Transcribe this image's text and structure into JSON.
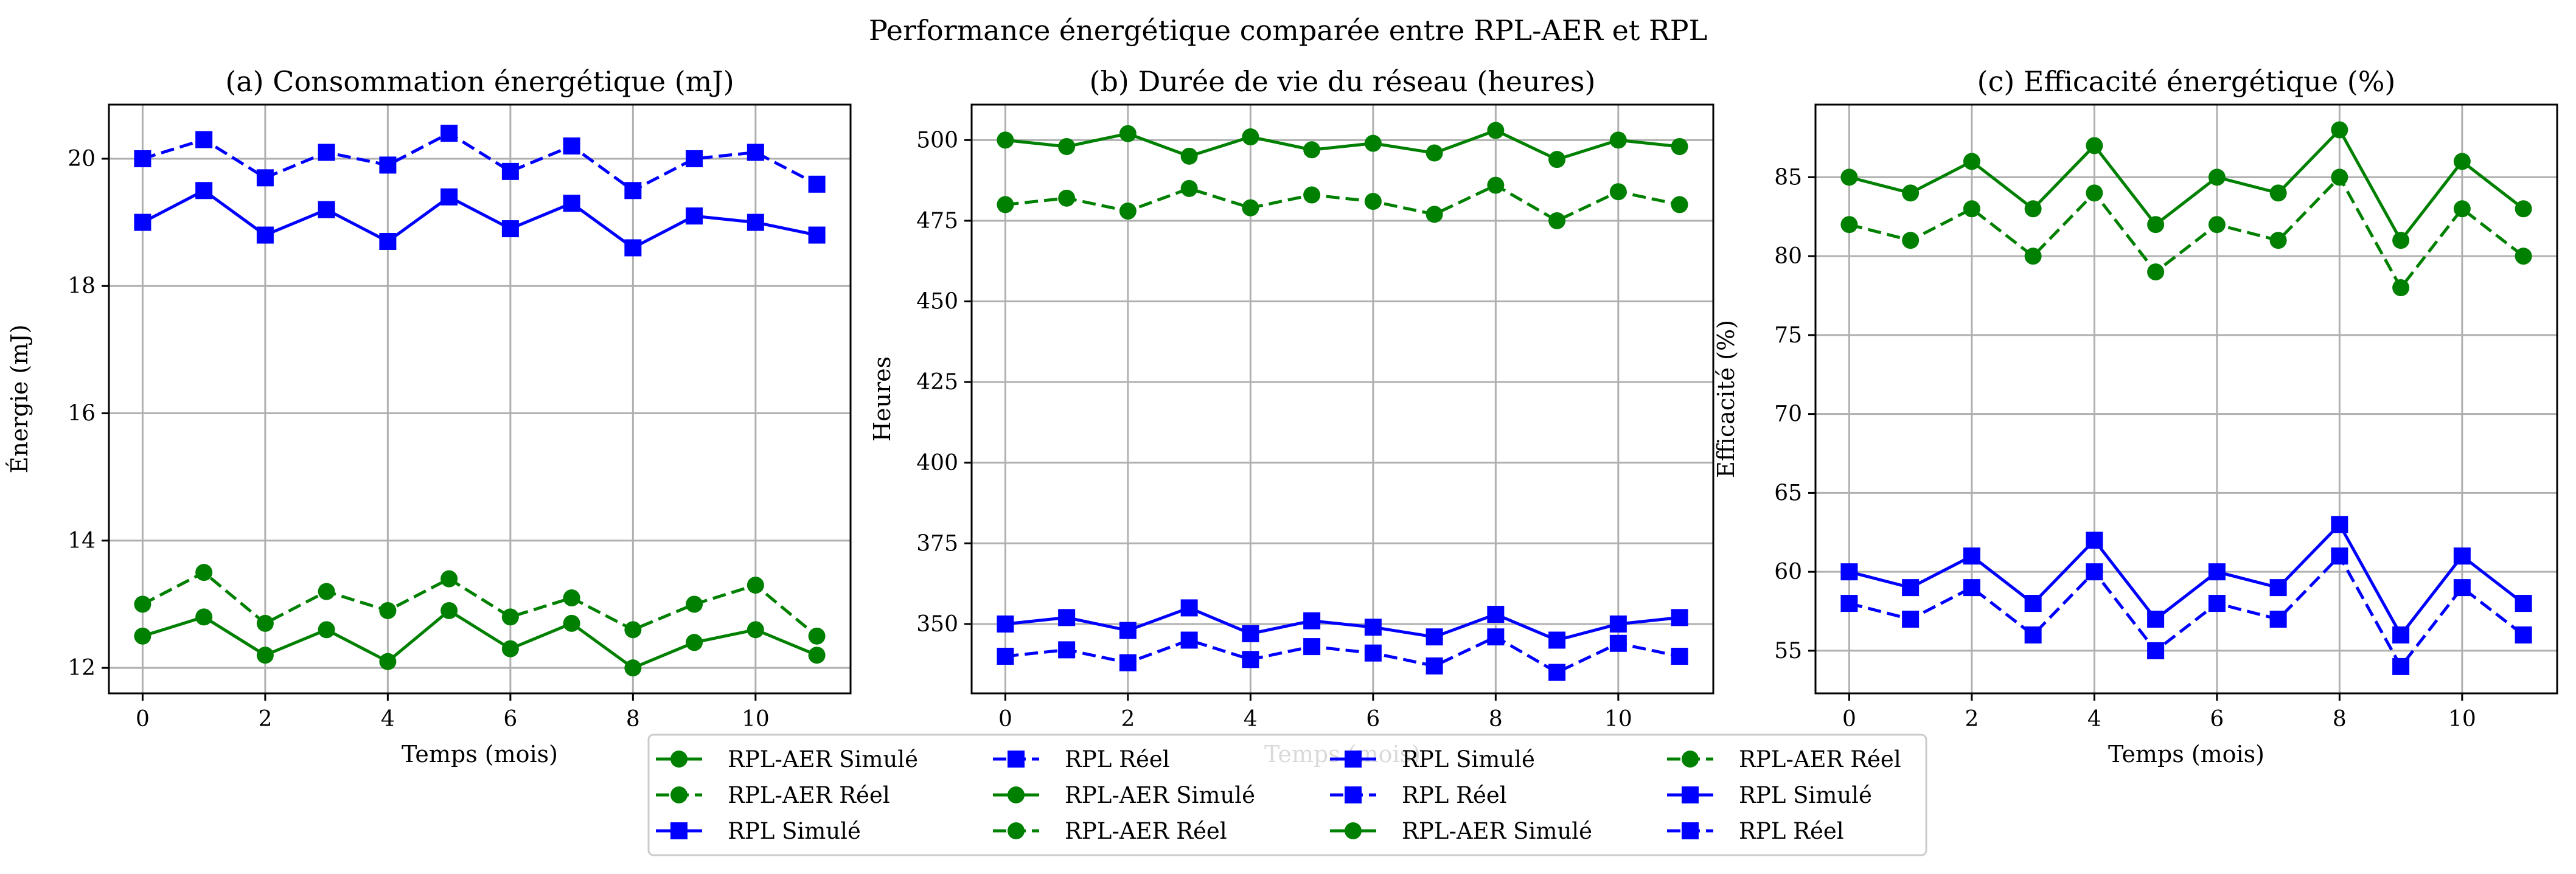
{
  "figure": {
    "title": "Performance énergétique comparée entre RPL-AER et RPL"
  },
  "colors": {
    "green": "#008000",
    "blue": "#0000ff",
    "grid": "#b0b0b0"
  },
  "chart_data": [
    {
      "type": "line",
      "title": "(a) Consommation énergétique (mJ)",
      "xlabel": "Temps (mois)",
      "ylabel": "Énergie (mJ)",
      "grid": true,
      "xlim": [
        -0.55,
        11.55
      ],
      "ylim": [
        11.6,
        20.85
      ],
      "xticks": [
        0,
        2,
        4,
        6,
        8,
        10
      ],
      "yticks": [
        12,
        14,
        16,
        18,
        20
      ],
      "x": [
        0,
        1,
        2,
        3,
        4,
        5,
        6,
        7,
        8,
        9,
        10,
        11
      ],
      "series": [
        {
          "name": "RPL-AER Simulé",
          "color": "#008000",
          "marker": "circle",
          "linestyle": "solid",
          "values": [
            12.5,
            12.8,
            12.2,
            12.6,
            12.1,
            12.9,
            12.3,
            12.7,
            12.0,
            12.4,
            12.6,
            12.2
          ]
        },
        {
          "name": "RPL-AER Réel",
          "color": "#008000",
          "marker": "circle",
          "linestyle": "dashed",
          "values": [
            13.0,
            13.5,
            12.7,
            13.2,
            12.9,
            13.4,
            12.8,
            13.1,
            12.6,
            13.0,
            13.3,
            12.5
          ]
        },
        {
          "name": "RPL Simulé",
          "color": "#0000ff",
          "marker": "square",
          "linestyle": "solid",
          "values": [
            19.0,
            19.5,
            18.8,
            19.2,
            18.7,
            19.4,
            18.9,
            19.3,
            18.6,
            19.1,
            19.0,
            18.8
          ]
        },
        {
          "name": "RPL Réel",
          "color": "#0000ff",
          "marker": "square",
          "linestyle": "dashed",
          "values": [
            20.0,
            20.3,
            19.7,
            20.1,
            19.9,
            20.4,
            19.8,
            20.2,
            19.5,
            20.0,
            20.1,
            19.6
          ]
        }
      ]
    },
    {
      "type": "line",
      "title": "(b) Durée de vie du réseau (heures)",
      "xlabel": "Temps (mois)",
      "ylabel": "Heures",
      "grid": true,
      "xlim": [
        -0.55,
        11.55
      ],
      "ylim": [
        328.5,
        511.0
      ],
      "xticks": [
        0,
        2,
        4,
        6,
        8,
        10
      ],
      "yticks": [
        350,
        375,
        400,
        425,
        450,
        475,
        500
      ],
      "x": [
        0,
        1,
        2,
        3,
        4,
        5,
        6,
        7,
        8,
        9,
        10,
        11
      ],
      "series": [
        {
          "name": "RPL-AER Simulé",
          "color": "#008000",
          "marker": "circle",
          "linestyle": "solid",
          "values": [
            500,
            498,
            502,
            495,
            501,
            497,
            499,
            496,
            503,
            494,
            500,
            498
          ]
        },
        {
          "name": "RPL-AER Réel",
          "color": "#008000",
          "marker": "circle",
          "linestyle": "dashed",
          "values": [
            480,
            482,
            478,
            485,
            479,
            483,
            481,
            477,
            486,
            475,
            484,
            480
          ]
        },
        {
          "name": "RPL Simulé",
          "color": "#0000ff",
          "marker": "square",
          "linestyle": "solid",
          "values": [
            350,
            352,
            348,
            355,
            347,
            351,
            349,
            346,
            353,
            345,
            350,
            352
          ]
        },
        {
          "name": "RPL Réel",
          "color": "#0000ff",
          "marker": "square",
          "linestyle": "dashed",
          "values": [
            340,
            342,
            338,
            345,
            339,
            343,
            341,
            337,
            346,
            335,
            344,
            340
          ]
        }
      ]
    },
    {
      "type": "line",
      "title": "(c) Efficacité énergétique (%)",
      "xlabel": "Temps (mois)",
      "ylabel": "Efficacité (%)",
      "grid": true,
      "xlim": [
        -0.55,
        11.55
      ],
      "ylim": [
        52.3,
        89.6
      ],
      "xticks": [
        0,
        2,
        4,
        6,
        8,
        10
      ],
      "yticks": [
        55,
        60,
        65,
        70,
        75,
        80,
        85
      ],
      "x": [
        0,
        1,
        2,
        3,
        4,
        5,
        6,
        7,
        8,
        9,
        10,
        11
      ],
      "series": [
        {
          "name": "RPL-AER Simulé",
          "color": "#008000",
          "marker": "circle",
          "linestyle": "solid",
          "values": [
            85,
            84,
            86,
            83,
            87,
            82,
            85,
            84,
            88,
            81,
            86,
            83
          ]
        },
        {
          "name": "RPL-AER Réel",
          "color": "#008000",
          "marker": "circle",
          "linestyle": "dashed",
          "values": [
            82,
            81,
            83,
            80,
            84,
            79,
            82,
            81,
            85,
            78,
            83,
            80
          ]
        },
        {
          "name": "RPL Simulé",
          "color": "#0000ff",
          "marker": "square",
          "linestyle": "solid",
          "values": [
            60,
            59,
            61,
            58,
            62,
            57,
            60,
            59,
            63,
            56,
            61,
            58
          ]
        },
        {
          "name": "RPL Réel",
          "color": "#0000ff",
          "marker": "square",
          "linestyle": "dashed",
          "values": [
            58,
            57,
            59,
            56,
            60,
            55,
            58,
            57,
            61,
            54,
            59,
            56
          ]
        }
      ]
    }
  ],
  "legend": {
    "placement": "bottom-center",
    "ncol": 4,
    "entries": [
      {
        "label": "RPL-AER Simulé",
        "color": "#008000",
        "marker": "circle",
        "linestyle": "solid"
      },
      {
        "label": "RPL-AER Réel",
        "color": "#008000",
        "marker": "circle",
        "linestyle": "dashed"
      },
      {
        "label": "RPL Simulé",
        "color": "#0000ff",
        "marker": "square",
        "linestyle": "solid"
      },
      {
        "label": "RPL Réel",
        "color": "#0000ff",
        "marker": "square",
        "linestyle": "dashed"
      },
      {
        "label": "RPL-AER Simulé",
        "color": "#008000",
        "marker": "circle",
        "linestyle": "solid"
      },
      {
        "label": "RPL-AER Réel",
        "color": "#008000",
        "marker": "circle",
        "linestyle": "dashed"
      },
      {
        "label": "RPL Simulé",
        "color": "#0000ff",
        "marker": "square",
        "linestyle": "solid"
      },
      {
        "label": "RPL Réel",
        "color": "#0000ff",
        "marker": "square",
        "linestyle": "dashed"
      },
      {
        "label": "RPL-AER Simulé",
        "color": "#008000",
        "marker": "circle",
        "linestyle": "solid"
      },
      {
        "label": "RPL-AER Réel",
        "color": "#008000",
        "marker": "circle",
        "linestyle": "dashed"
      },
      {
        "label": "RPL Simulé",
        "color": "#0000ff",
        "marker": "square",
        "linestyle": "solid"
      },
      {
        "label": "RPL Réel",
        "color": "#0000ff",
        "marker": "square",
        "linestyle": "dashed"
      }
    ]
  }
}
